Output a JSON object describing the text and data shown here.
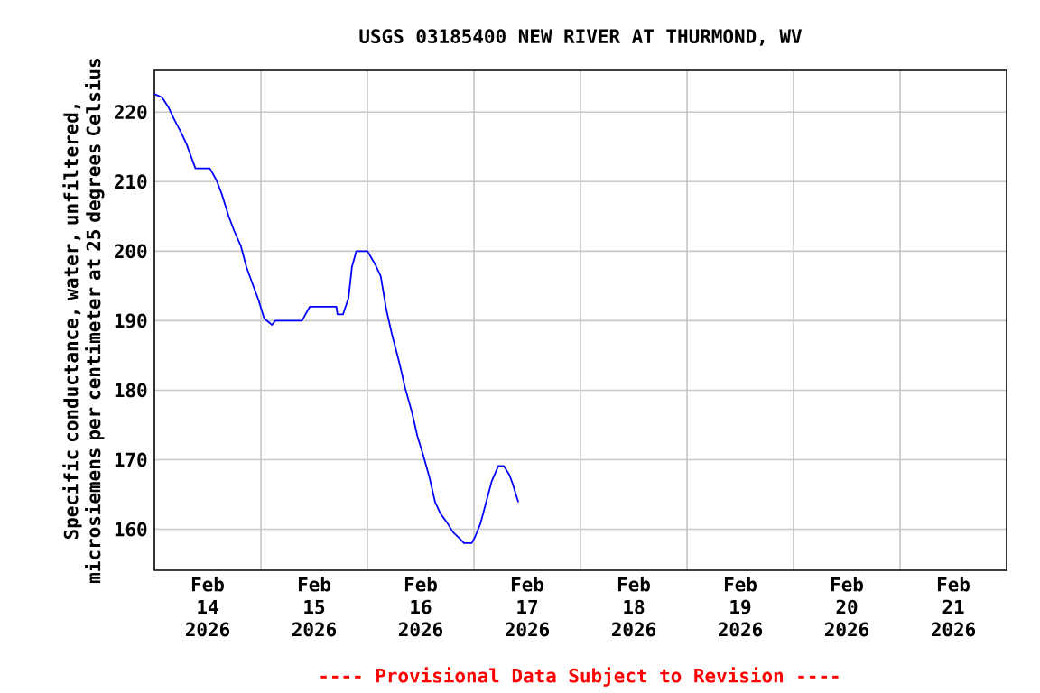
{
  "chart_data": {
    "type": "line",
    "title": "USGS 03185400 NEW RIVER AT THURMOND, WV",
    "ylabel": "Specific conductance, water, unfiltered, microsiemens per centimeter at 25 degrees Celsius",
    "annotations": [
      "---- Provisional Data Subject to Revision ----"
    ],
    "x": [
      "2026-02-14T00:00",
      "2026-02-14T01:45",
      "2026-02-14T03:15",
      "2026-02-14T04:30",
      "2026-02-14T06:00",
      "2026-02-14T07:15",
      "2026-02-14T08:30",
      "2026-02-14T09:15",
      "2026-02-14T12:30",
      "2026-02-14T14:00",
      "2026-02-14T15:15",
      "2026-02-14T16:45",
      "2026-02-14T18:00",
      "2026-02-14T19:30",
      "2026-02-14T20:45",
      "2026-02-14T22:00",
      "2026-02-14T23:30",
      "2026-02-15T00:45",
      "2026-02-15T02:30",
      "2026-02-15T03:15",
      "2026-02-15T09:15",
      "2026-02-15T11:00",
      "2026-02-15T17:00",
      "2026-02-15T17:15",
      "2026-02-15T18:30",
      "2026-02-15T19:45",
      "2026-02-15T20:30",
      "2026-02-15T21:30",
      "2026-02-16T00:00",
      "2026-02-16T01:45",
      "2026-02-16T03:00",
      "2026-02-16T04:15",
      "2026-02-16T05:30",
      "2026-02-16T07:15",
      "2026-02-16T08:30",
      "2026-02-16T10:00",
      "2026-02-16T11:15",
      "2026-02-16T12:30",
      "2026-02-16T14:00",
      "2026-02-16T15:15",
      "2026-02-16T16:30",
      "2026-02-16T18:00",
      "2026-02-16T19:15",
      "2026-02-16T20:45",
      "2026-02-16T21:45",
      "2026-02-16T23:30",
      "2026-02-17T00:15",
      "2026-02-17T01:30",
      "2026-02-17T02:45",
      "2026-02-17T04:00",
      "2026-02-17T05:30",
      "2026-02-17T06:45",
      "2026-02-17T08:00",
      "2026-02-17T08:45",
      "2026-02-17T09:30",
      "2026-02-17T10:00"
    ],
    "series": [
      {
        "color": "#0000ff",
        "values": [
          222.6,
          222.1,
          220.6,
          218.9,
          217.1,
          215.4,
          213.2,
          211.9,
          211.9,
          210.2,
          208.1,
          205.0,
          202.9,
          200.7,
          197.7,
          195.5,
          192.9,
          190.3,
          189.4,
          190.0,
          190.0,
          192.0,
          192.0,
          190.9,
          190.9,
          193.3,
          197.7,
          200.0,
          200.0,
          198.1,
          196.4,
          191.6,
          188.1,
          183.8,
          180.3,
          176.9,
          173.4,
          170.8,
          167.4,
          163.9,
          162.2,
          160.9,
          159.6,
          158.7,
          158.0,
          158.0,
          158.9,
          160.9,
          163.9,
          166.9,
          169.1,
          169.1,
          167.8,
          166.5,
          164.9,
          163.9
        ]
      }
    ],
    "xlim": [
      "2026-02-14T00:00",
      "2026-02-22T00:00"
    ],
    "xticks": [
      {
        "value": "2026-02-15",
        "label": null
      },
      {
        "value": "2026-02-16",
        "label": null
      },
      {
        "value": "2026-02-17",
        "label": null
      },
      {
        "value": "2026-02-18",
        "label": null
      },
      {
        "value": "2026-02-19",
        "label": null
      },
      {
        "value": "2026-02-20",
        "label": null
      },
      {
        "value": "2026-02-21",
        "label": null
      },
      {
        "value": "2026-02-14T12:00",
        "label": "Feb 14 2026"
      },
      {
        "value": "2026-02-15T12:00",
        "label": "Feb 15 2026"
      },
      {
        "value": "2026-02-16T12:00",
        "label": "Feb 16 2026"
      },
      {
        "value": "2026-02-17T12:00",
        "label": "Feb 17 2026"
      },
      {
        "value": "2026-02-18T12:00",
        "label": "Feb 18 2026"
      },
      {
        "value": "2026-02-19T12:00",
        "label": "Feb 19 2026"
      },
      {
        "value": "2026-02-20T12:00",
        "label": "Feb 20 2026"
      },
      {
        "value": "2026-02-21T12:00",
        "label": "Feb 21 2026"
      }
    ],
    "ylim": [
      154.1,
      226
    ],
    "yticks": [
      160,
      170,
      180,
      190,
      200,
      210,
      220
    ],
    "grid": true
  }
}
